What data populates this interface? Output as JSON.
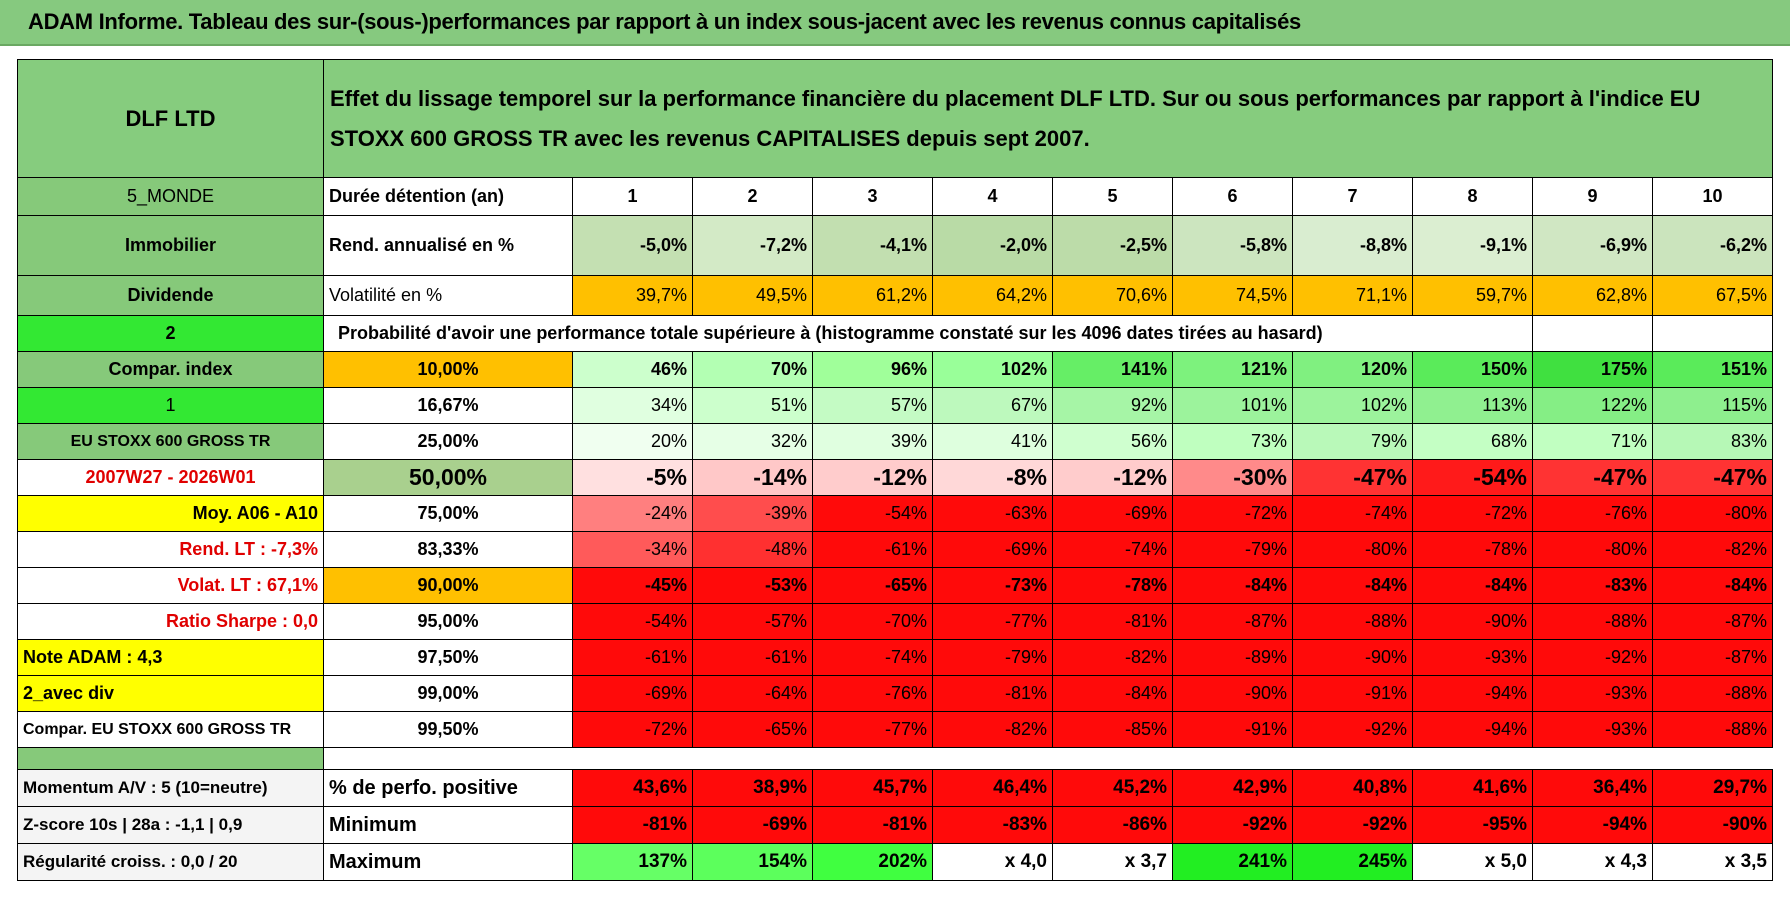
{
  "title": "ADAM Informe. Tableau des sur-(sous-)performances par rapport à un index sous-jacent avec les revenus connus capitalisés",
  "header": {
    "name": "DLF LTD",
    "description": "Effet du lissage temporel sur la performance financière du placement DLF LTD. Sur ou sous performances par rapport à l'indice EU STOXX 600 GROSS TR avec les revenus CAPITALISES depuis sept 2007."
  },
  "table": {
    "rows": [
      [
        "5_MONDE",
        "Durée détention (an)",
        "1",
        "2",
        "3",
        "4",
        "5",
        "6",
        "7",
        "8",
        "9",
        "10"
      ],
      [
        "Immobilier",
        "Rend. annualisé en %",
        "-5,0%",
        "-7,2%",
        "-4,1%",
        "-2,0%",
        "-2,5%",
        "-5,8%",
        "-8,8%",
        "-9,1%",
        "-6,9%",
        "-6,2%"
      ],
      [
        "Dividende",
        "Volatilité en %",
        "39,7%",
        "49,5%",
        "61,2%",
        "64,2%",
        "70,6%",
        "74,5%",
        "71,1%",
        "59,7%",
        "62,8%",
        "67,5%"
      ],
      [
        "2",
        "Probabilité d'avoir une performance totale supérieure à (histogramme constaté sur les 4096 dates tirées au hasard)"
      ],
      [
        "Compar. index",
        "10,00%",
        "46%",
        "70%",
        "96%",
        "102%",
        "141%",
        "121%",
        "120%",
        "150%",
        "175%",
        "151%"
      ],
      [
        "1",
        "16,67%",
        "34%",
        "51%",
        "57%",
        "67%",
        "92%",
        "101%",
        "102%",
        "113%",
        "122%",
        "115%"
      ],
      [
        "EU STOXX 600 GROSS TR",
        "25,00%",
        "20%",
        "32%",
        "39%",
        "41%",
        "56%",
        "73%",
        "79%",
        "68%",
        "71%",
        "83%"
      ],
      [
        "2007W27 - 2026W01",
        "50,00%",
        "-5%",
        "-14%",
        "-12%",
        "-8%",
        "-12%",
        "-30%",
        "-47%",
        "-54%",
        "-47%",
        "-47%"
      ],
      [
        "Moy. A06 - A10",
        "75,00%",
        "-24%",
        "-39%",
        "-54%",
        "-63%",
        "-69%",
        "-72%",
        "-74%",
        "-72%",
        "-76%",
        "-80%"
      ],
      [
        "Rend. LT :   -7,3%",
        "83,33%",
        "-34%",
        "-48%",
        "-61%",
        "-69%",
        "-74%",
        "-79%",
        "-80%",
        "-78%",
        "-80%",
        "-82%"
      ],
      [
        "Volat. LT :   67,1%",
        "90,00%",
        "-45%",
        "-53%",
        "-65%",
        "-73%",
        "-78%",
        "-84%",
        "-84%",
        "-84%",
        "-83%",
        "-84%"
      ],
      [
        "Ratio Sharpe :    0,0",
        "95,00%",
        "-54%",
        "-57%",
        "-70%",
        "-77%",
        "-81%",
        "-87%",
        "-88%",
        "-90%",
        "-88%",
        "-87%"
      ],
      [
        "Note ADAM : 4,3",
        "97,50%",
        "-61%",
        "-61%",
        "-74%",
        "-79%",
        "-82%",
        "-89%",
        "-90%",
        "-93%",
        "-92%",
        "-87%"
      ],
      [
        "2_avec div",
        "99,00%",
        "-69%",
        "-64%",
        "-76%",
        "-81%",
        "-84%",
        "-90%",
        "-91%",
        "-94%",
        "-93%",
        "-88%"
      ],
      [
        "Compar. EU STOXX 600 GROSS TR",
        "99,50%",
        "-72%",
        "-65%",
        "-77%",
        "-82%",
        "-85%",
        "-91%",
        "-92%",
        "-94%",
        "-93%",
        "-88%"
      ]
    ],
    "stats_rows": [
      [
        "Momentum A/V : 5 (10=neutre)",
        "% de perfo. positive",
        "43,6%",
        "38,9%",
        "45,7%",
        "46,4%",
        "45,2%",
        "42,9%",
        "40,8%",
        "41,6%",
        "36,4%",
        "29,7%"
      ],
      [
        "Z-score 10s | 28a : -1,1 | 0,9",
        "Minimum",
        "-81%",
        "-69%",
        "-81%",
        "-83%",
        "-86%",
        "-92%",
        "-92%",
        "-95%",
        "-94%",
        "-90%"
      ],
      [
        "Régularité croiss. : 0,0 / 20",
        "Maximum",
        "137%",
        "154%",
        "202%",
        "x 4,0",
        "x 3,7",
        "241%",
        "245%",
        "x 5,0",
        "x 4,3",
        "x 3,5"
      ]
    ]
  }
}
